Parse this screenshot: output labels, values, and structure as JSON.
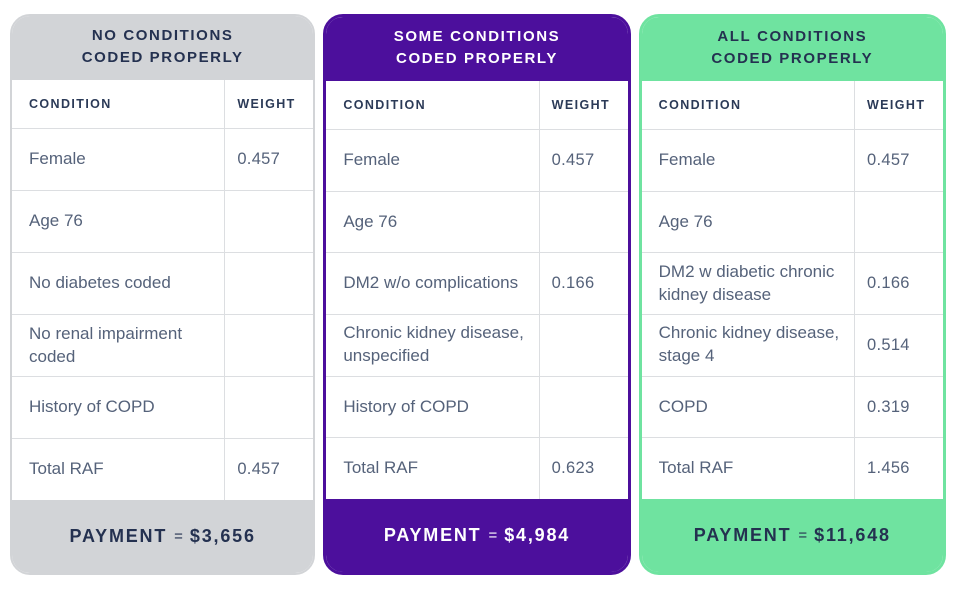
{
  "colors": {
    "gray": "#d2d4d7",
    "purple": "#4c0f9c",
    "green": "#6fe3a0",
    "navy": "#243150",
    "slate": "#55627a",
    "line": "#dcdee1",
    "white": "#ffffff"
  },
  "table_headers": {
    "condition": "CONDITION",
    "weight": "WEIGHT"
  },
  "cards": [
    {
      "title_strong": "NO",
      "title_rest": "CONDITIONS",
      "title_line2": "CODED PROPERLY",
      "rows": [
        {
          "condition": "Female",
          "weight": "0.457"
        },
        {
          "condition": "Age 76",
          "weight": ""
        },
        {
          "condition": "No diabetes coded",
          "weight": ""
        },
        {
          "condition": "No renal impairment coded",
          "weight": ""
        },
        {
          "condition": "History of COPD",
          "weight": ""
        },
        {
          "condition": "Total RAF",
          "weight": "0.457"
        }
      ],
      "payment_label": "PAYMENT",
      "payment_eq": "=",
      "payment_value": "$3,656"
    },
    {
      "title_strong": "SOME",
      "title_rest": "CONDITIONS",
      "title_line2": "CODED PROPERLY",
      "rows": [
        {
          "condition": "Female",
          "weight": "0.457"
        },
        {
          "condition": "Age 76",
          "weight": ""
        },
        {
          "condition": "DM2 w/o complications",
          "weight": "0.166"
        },
        {
          "condition": "Chronic kidney disease, unspecified",
          "weight": ""
        },
        {
          "condition": "History of COPD",
          "weight": ""
        },
        {
          "condition": "Total RAF",
          "weight": "0.623"
        }
      ],
      "payment_label": "PAYMENT",
      "payment_eq": "=",
      "payment_value": "$4,984"
    },
    {
      "title_strong": "ALL",
      "title_rest": "CONDITIONS",
      "title_line2": "CODED PROPERLY",
      "rows": [
        {
          "condition": "Female",
          "weight": "0.457"
        },
        {
          "condition": "Age 76",
          "weight": ""
        },
        {
          "condition": "DM2 w diabetic chronic kidney disease",
          "weight": "0.166"
        },
        {
          "condition": "Chronic kidney disease, stage 4",
          "weight": "0.514"
        },
        {
          "condition": "COPD",
          "weight": "0.319"
        },
        {
          "condition": "Total RAF",
          "weight": "1.456"
        }
      ],
      "payment_label": "PAYMENT",
      "payment_eq": "=",
      "payment_value": "$11,648"
    }
  ]
}
